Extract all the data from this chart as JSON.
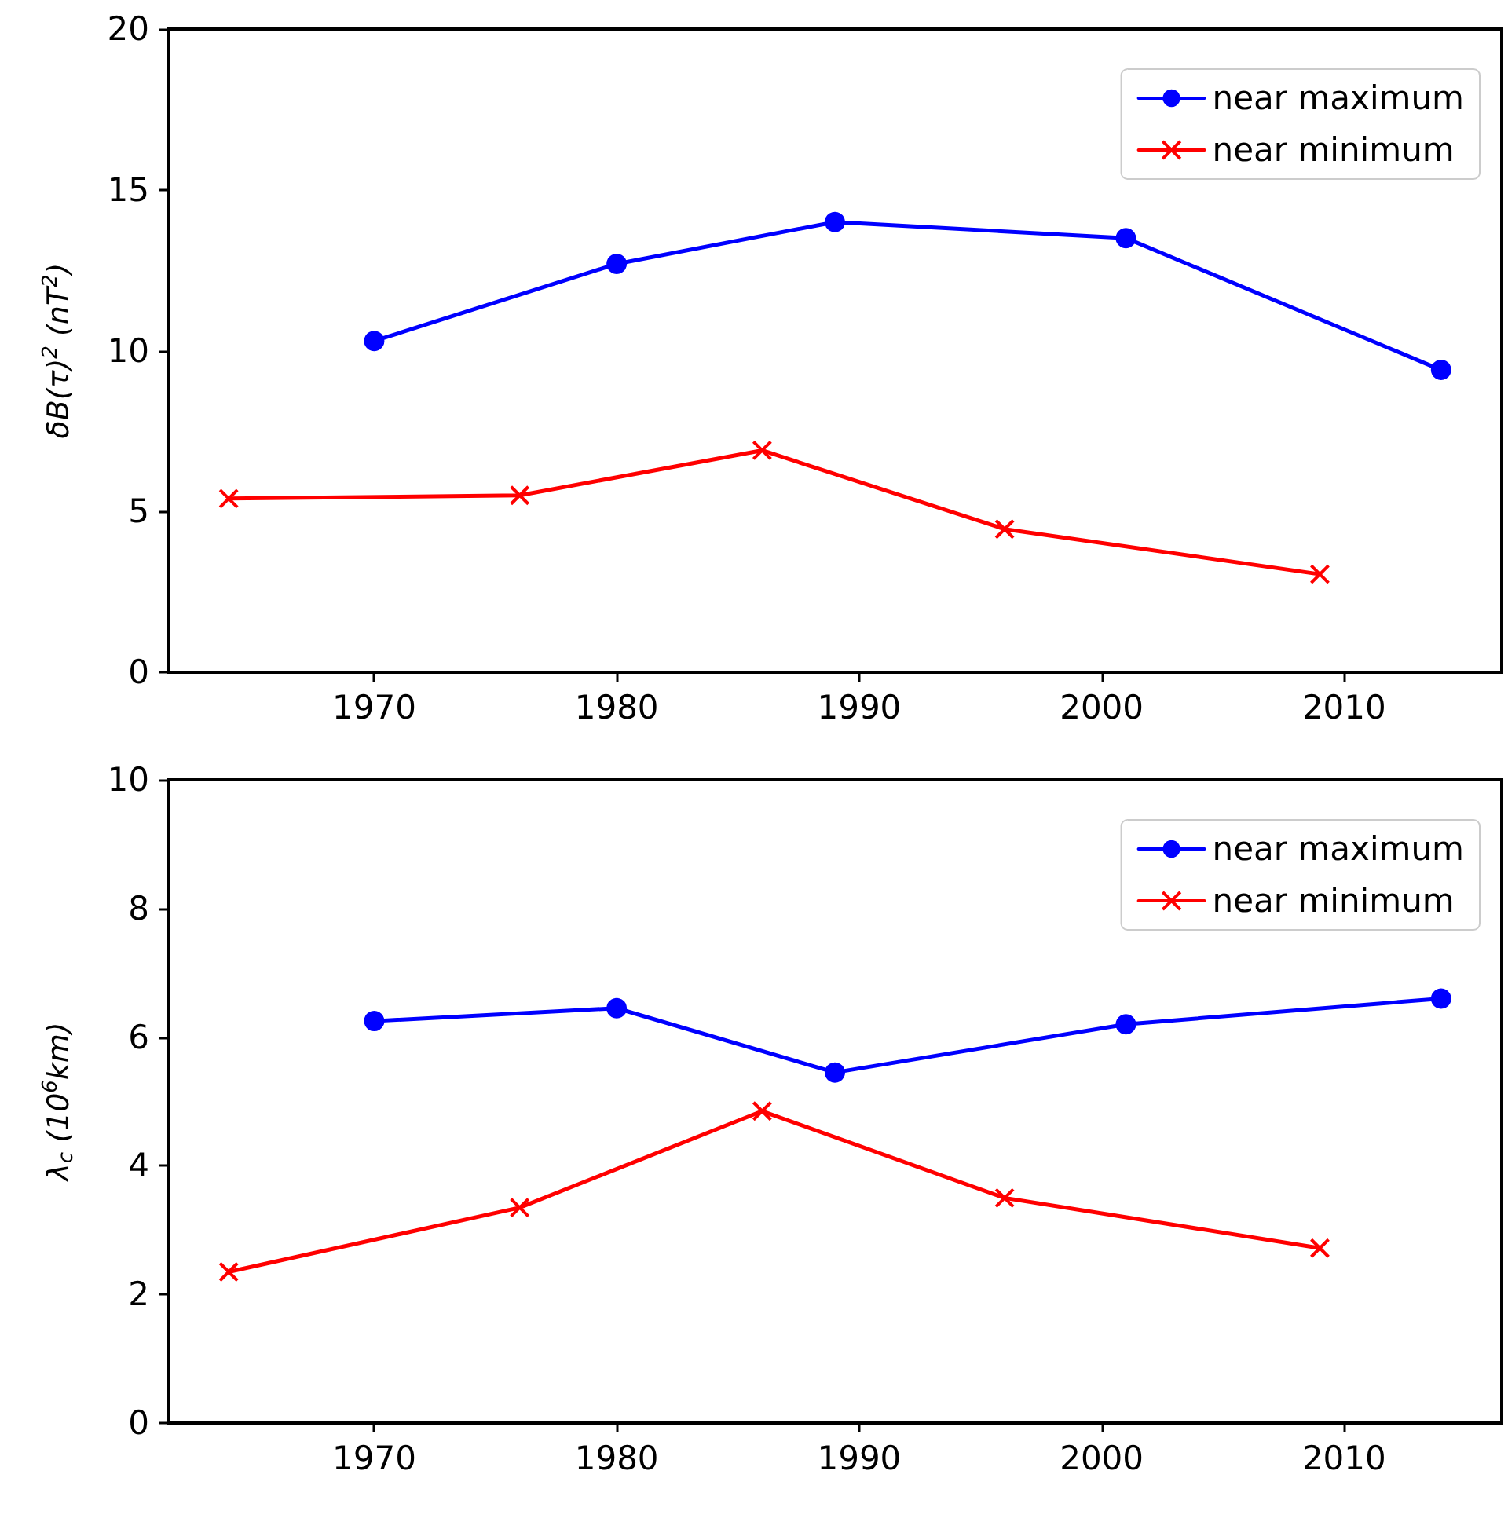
{
  "chart_data": [
    {
      "type": "line",
      "ylabel": "δB(τ)$^{2}$ (nT$^{2}$)",
      "xlim": [
        1961.5,
        2016.5
      ],
      "xticks": [
        1970,
        1980,
        1990,
        2000,
        2010
      ],
      "ylim": [
        0,
        20
      ],
      "yticks": [
        0,
        5,
        10,
        15,
        20
      ],
      "grid": false,
      "legend": "top right",
      "series": [
        {
          "name": "near maximum",
          "color": "#0000ff",
          "marker": "circle",
          "x": [
            1970,
            1980,
            1989,
            2001,
            2014
          ],
          "values": [
            10.3,
            12.7,
            14.0,
            13.5,
            9.4
          ]
        },
        {
          "name": "near minimum",
          "color": "#ff0000",
          "marker": "cross",
          "x": [
            1964,
            1976,
            1986,
            1996,
            2009
          ],
          "values": [
            5.4,
            5.5,
            6.9,
            4.45,
            3.05
          ]
        }
      ]
    },
    {
      "type": "line",
      "ylabel": "λ$_{c}$ (10$^{6}$km)",
      "xlim": [
        1961.5,
        2016.5
      ],
      "xticks": [
        1970,
        1980,
        1990,
        2000,
        2010
      ],
      "ylim": [
        0,
        10
      ],
      "yticks": [
        0,
        2,
        4,
        6,
        8,
        10
      ],
      "grid": false,
      "legend": "top right",
      "series": [
        {
          "name": "near maximum",
          "color": "#0000ff",
          "marker": "circle",
          "x": [
            1970,
            1980,
            1989,
            2001,
            2014
          ],
          "values": [
            6.25,
            6.45,
            5.45,
            6.2,
            6.6
          ]
        },
        {
          "name": "near minimum",
          "color": "#ff0000",
          "marker": "cross",
          "x": [
            1964,
            1976,
            1986,
            1996,
            2009
          ],
          "values": [
            2.35,
            3.35,
            4.85,
            3.5,
            2.72
          ]
        }
      ]
    }
  ]
}
